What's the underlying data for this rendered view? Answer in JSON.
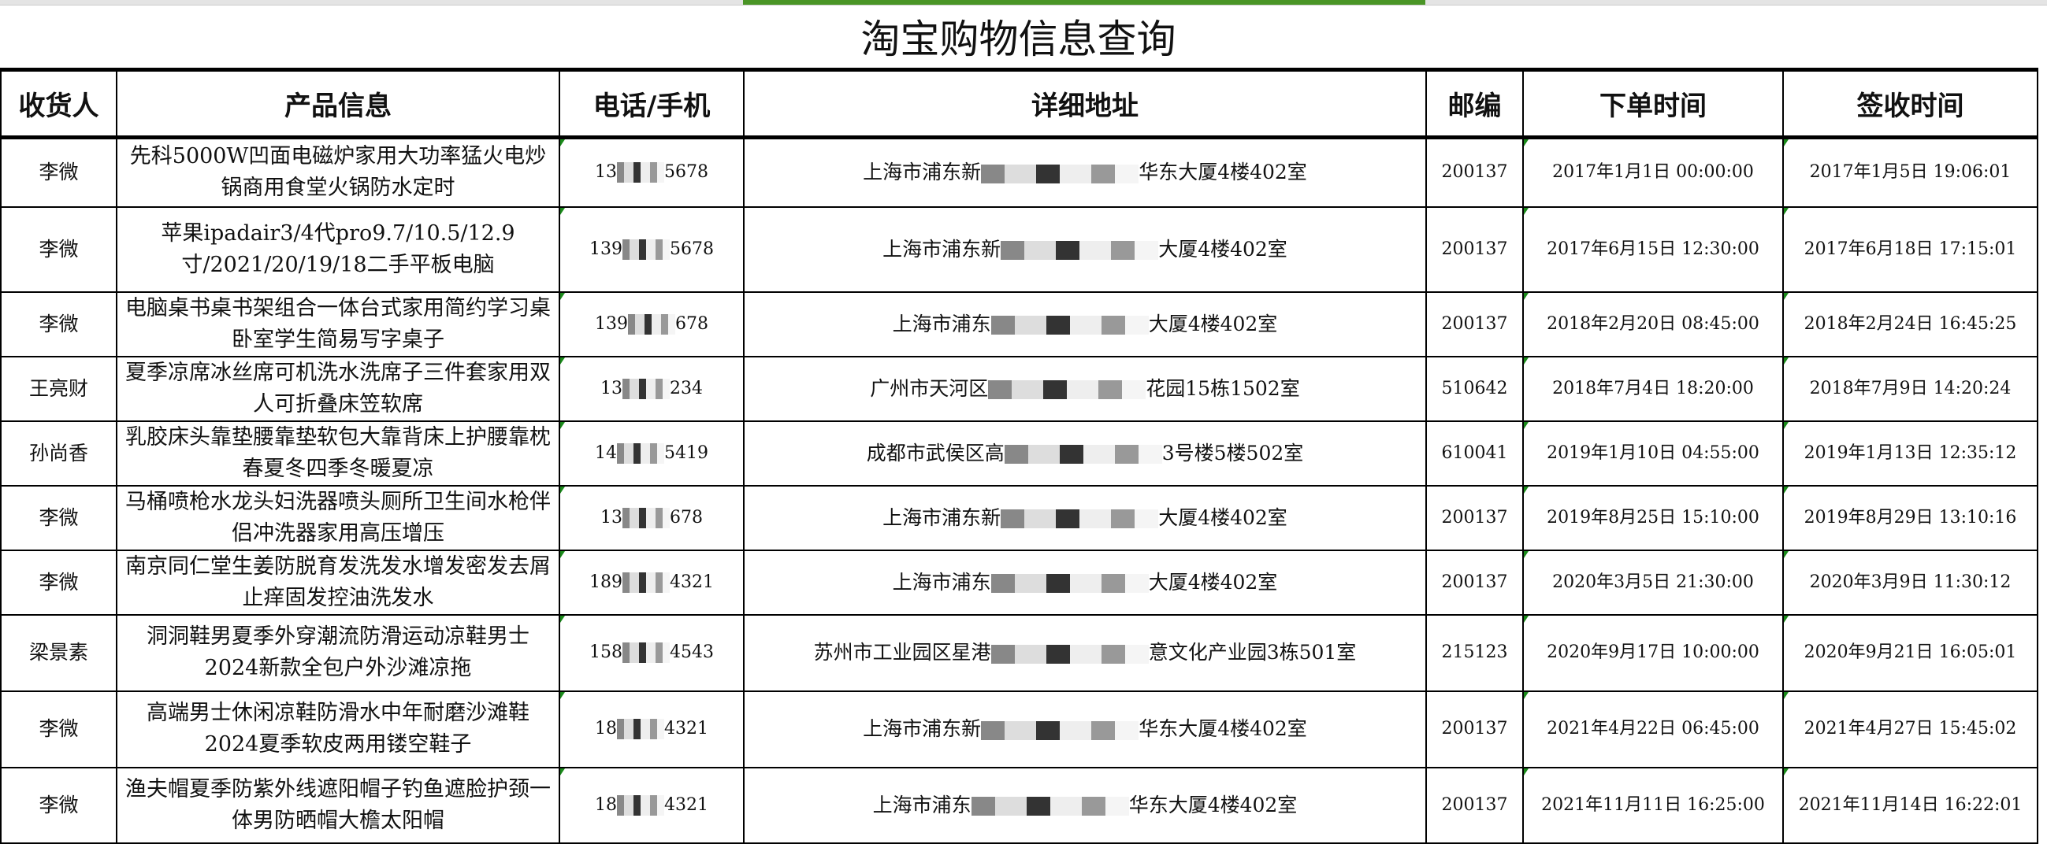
{
  "title": "淘宝购物信息查询",
  "accent_color": "#4a9526",
  "columns": [
    "收货人",
    "产品信息",
    "电话/手机",
    "详细地址",
    "邮编",
    "下单时间",
    "签收时间"
  ],
  "rows": [
    {
      "name": "李微",
      "product": "先科5000W凹面电磁炉家用大功率猛火电炒锅商用食堂火锅防水定时",
      "phone_start": "13",
      "phone_end": "5678",
      "addr_start": "上海市浦东新",
      "addr_end": "华东大厦4楼402室",
      "zip": "200137",
      "order_time": "2017年1月1日  00:00:00",
      "sign_time": "2017年1月5日  19:06:01"
    },
    {
      "name": "李微",
      "product": "苹果ipadair3/4代pro9.7/10.5/12.9寸/2021/20/19/18二手平板电脑",
      "phone_start": "139",
      "phone_end": "5678",
      "addr_start": "上海市浦东新",
      "addr_end": "大厦4楼402室",
      "zip": "200137",
      "order_time": "2017年6月15日  12:30:00",
      "sign_time": "2017年6月18日  17:15:01"
    },
    {
      "name": "李微",
      "product": "电脑桌书桌书架组合一体台式家用简约学习桌卧室学生简易写字桌子",
      "phone_start": "139",
      "phone_end": "678",
      "addr_start": "上海市浦东",
      "addr_end": "大厦4楼402室",
      "zip": "200137",
      "order_time": "2018年2月20日  08:45:00",
      "sign_time": "2018年2月24日  16:45:25"
    },
    {
      "name": "王亮财",
      "product": "夏季凉席冰丝席可机洗水洗席子三件套家用双人可折叠床笠软席",
      "phone_start": "13",
      "phone_end": "234",
      "addr_start": "广州市天河区",
      "addr_end": "花园15栋1502室",
      "zip": "510642",
      "order_time": "2018年7月4日  18:20:00",
      "sign_time": "2018年7月9日  14:20:24"
    },
    {
      "name": "孙尚香",
      "product": "乳胶床头靠垫腰靠垫软包大靠背床上护腰靠枕春夏冬四季冬暖夏凉",
      "phone_start": "14",
      "phone_end": "5419",
      "addr_start": "成都市武侯区高",
      "addr_end": "3号楼5楼502室",
      "zip": "610041",
      "order_time": "2019年1月10日  04:55:00",
      "sign_time": "2019年1月13日  12:35:12"
    },
    {
      "name": "李微",
      "product": "马桶喷枪水龙头妇洗器喷头厕所卫生间水枪伴侣冲洗器家用高压增压",
      "phone_start": "13",
      "phone_end": "678",
      "addr_start": "上海市浦东新",
      "addr_end": "大厦4楼402室",
      "zip": "200137",
      "order_time": "2019年8月25日  15:10:00",
      "sign_time": "2019年8月29日  13:10:16"
    },
    {
      "name": "李微",
      "product": "南京同仁堂生姜防脱育发洗发水增发密发去屑止痒固发控油洗发水",
      "phone_start": "189",
      "phone_end": "4321",
      "addr_start": "上海市浦东",
      "addr_end": "大厦4楼402室",
      "zip": "200137",
      "order_time": "2020年3月5日  21:30:00",
      "sign_time": "2020年3月9日  11:30:12"
    },
    {
      "name": "梁景素",
      "product": "洞洞鞋男夏季外穿潮流防滑运动凉鞋男士2024新款全包户外沙滩凉拖",
      "phone_start": "158",
      "phone_end": "4543",
      "addr_start": "苏州市工业园区星港",
      "addr_end": "意文化产业园3栋501室",
      "zip": "215123",
      "order_time": "2020年9月17日  10:00:00",
      "sign_time": "2020年9月21日  16:05:01"
    },
    {
      "name": "李微",
      "product": "高端男士休闲凉鞋防滑水中年耐磨沙滩鞋2024夏季软皮两用镂空鞋子",
      "phone_start": "18",
      "phone_end": "4321",
      "addr_start": "上海市浦东新",
      "addr_end": "华东大厦4楼402室",
      "zip": "200137",
      "order_time": "2021年4月22日  06:45:00",
      "sign_time": "2021年4月27日  15:45:02"
    },
    {
      "name": "李微",
      "product": "渔夫帽夏季防紫外线遮阳帽子钓鱼遮脸护颈一体男防晒帽大檐太阳帽",
      "phone_start": "18",
      "phone_end": "4321",
      "addr_start": "上海市浦东",
      "addr_end": "华东大厦4楼402室",
      "zip": "200137",
      "order_time": "2021年11月11日  16:25:00",
      "sign_time": "2021年11月14日  16:22:01"
    }
  ]
}
